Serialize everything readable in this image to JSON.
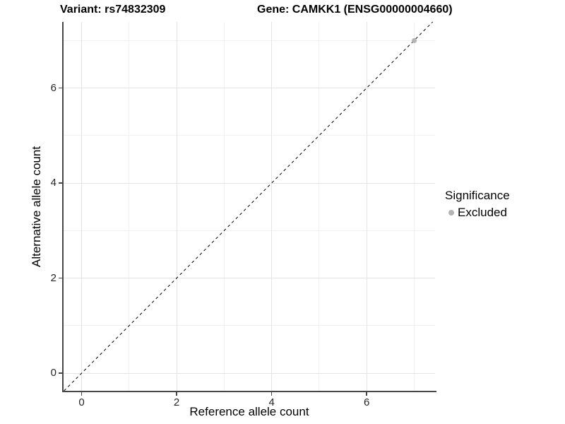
{
  "chart_data": {
    "type": "scatter",
    "title_left": "Variant: rs74832309",
    "title_right": "Gene: CAMKK1 (ENSG00000004660)",
    "xlabel": "Reference allele count",
    "ylabel": "Alternative allele count",
    "xlim": [
      -0.38,
      7.44
    ],
    "ylim": [
      -0.37,
      7.39
    ],
    "x_major_ticks": [
      0,
      2,
      4,
      6
    ],
    "x_minor_ticks": [
      1,
      3,
      5,
      7
    ],
    "y_major_ticks": [
      0,
      2,
      4,
      6
    ],
    "y_minor_ticks": [
      1,
      3,
      5,
      7
    ],
    "grid": true,
    "reference_line": {
      "type": "identity",
      "style": "dashed",
      "color": "#000000",
      "dash": "4 4"
    },
    "series": [
      {
        "name": "Excluded",
        "color": "#b3b3b3",
        "point_size": 7,
        "points": [
          {
            "x": 7,
            "y": 7
          }
        ]
      }
    ],
    "legend": {
      "title": "Significance",
      "position": "right",
      "items": [
        {
          "label": "Excluded",
          "color": "#b3b3b3"
        }
      ]
    },
    "colors": {
      "grid_major": "#e4e4e4",
      "grid_minor": "#f1f1f1",
      "axis": "#474747",
      "tick_label": "#262626",
      "background": "#ffffff"
    }
  }
}
